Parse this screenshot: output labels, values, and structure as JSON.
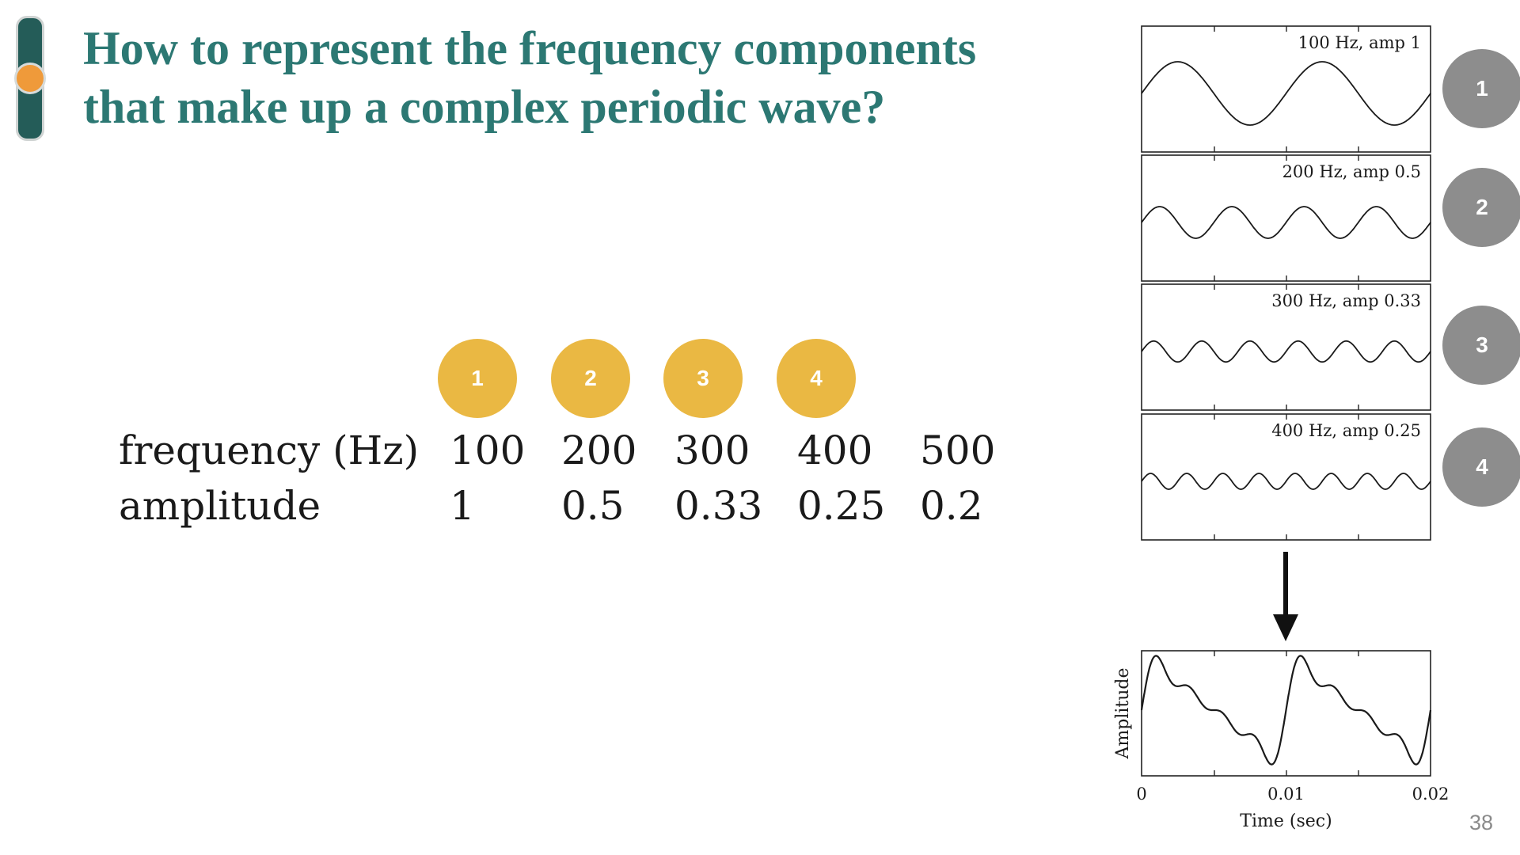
{
  "slide": {
    "title_line1": "How to represent the frequency components",
    "title_line2": "that make up a complex periodic wave?",
    "page_number": "38"
  },
  "colors": {
    "title": "#2c7873",
    "badge_gold": "#eab843",
    "badge_gray": "#8d8d8d",
    "sidebar": "#245c58",
    "sidebar_knob": "#ef9a3a"
  },
  "table": {
    "badges": [
      "1",
      "2",
      "3",
      "4"
    ],
    "row_labels": {
      "frequency": "frequency (Hz)",
      "amplitude": "amplitude"
    },
    "frequency": [
      "100",
      "200",
      "300",
      "400",
      "500"
    ],
    "amplitude": [
      "1",
      "0.5",
      "0.33",
      "0.25",
      "0.2"
    ]
  },
  "right_badges": [
    "1",
    "2",
    "3",
    "4"
  ],
  "components": [
    {
      "label": "100 Hz, amp 1",
      "freq": 100,
      "amp": 1
    },
    {
      "label": "200 Hz, amp 0.5",
      "freq": 200,
      "amp": 0.5
    },
    {
      "label": "300 Hz, amp 0.33",
      "freq": 300,
      "amp": 0.33
    },
    {
      "label": "400 Hz, amp 0.25",
      "freq": 400,
      "amp": 0.25
    }
  ],
  "chart_data": {
    "type": "line",
    "series": [
      {
        "values": "sum of the four sine components above"
      }
    ],
    "x_range": [
      0,
      0.02
    ],
    "x_ticks": [
      "0",
      "0.01",
      "0.02"
    ],
    "xlabel": "Time (sec)",
    "ylabel": "Amplitude"
  }
}
